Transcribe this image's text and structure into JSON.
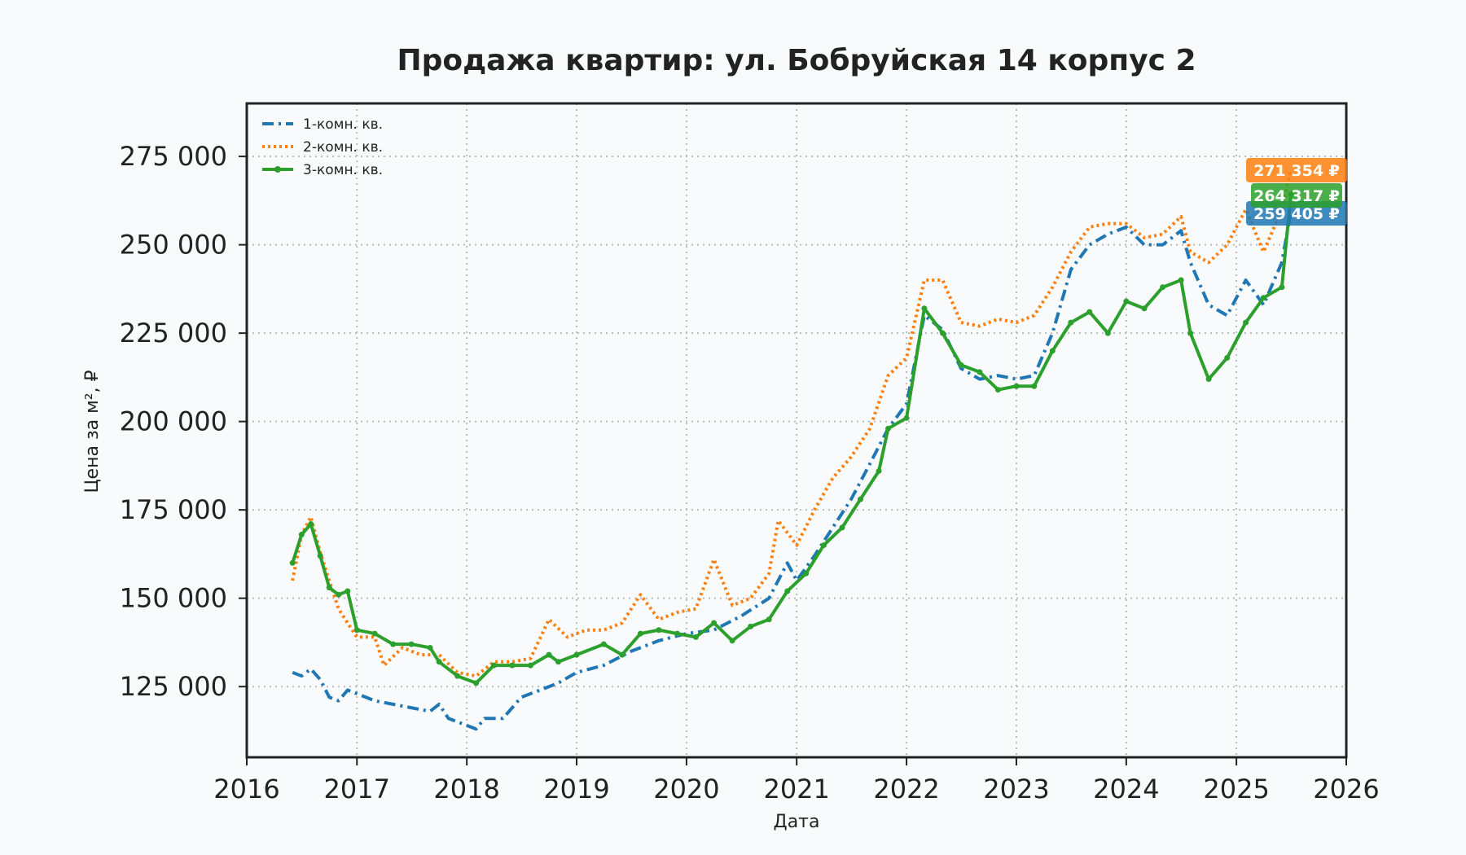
{
  "chart_data": {
    "type": "line",
    "title": "Продажа квартир: ул. Бобруйская 14 корпус 2",
    "xlabel": "Дата",
    "ylabel": "Цена за м², ₽",
    "xlim": [
      "2016-01-01",
      "2026-01-01"
    ],
    "ylim": [
      105000,
      290000
    ],
    "x_ticks": [
      "2016",
      "2017",
      "2018",
      "2019",
      "2020",
      "2021",
      "2022",
      "2023",
      "2024",
      "2025",
      "2026"
    ],
    "y_ticks": [
      {
        "value": 125000,
        "label": "125 000"
      },
      {
        "value": 150000,
        "label": "150 000"
      },
      {
        "value": 175000,
        "label": "175 000"
      },
      {
        "value": 200000,
        "label": "200 000"
      },
      {
        "value": 225000,
        "label": "225 000"
      },
      {
        "value": 250000,
        "label": "250 000"
      },
      {
        "value": 275000,
        "label": "275 000"
      }
    ],
    "grid": true,
    "legend_position": "top-left",
    "series": [
      {
        "name": "1-комн. кв.",
        "color": "#1f77b4",
        "style": "dashdot",
        "end_label": "259 405 ₽",
        "end_value": 259405,
        "points": [
          [
            "2016-06-01",
            129000
          ],
          [
            "2016-07-01",
            128000
          ],
          [
            "2016-08-01",
            130000
          ],
          [
            "2016-09-01",
            127000
          ],
          [
            "2016-10-01",
            122000
          ],
          [
            "2016-11-01",
            121000
          ],
          [
            "2016-12-01",
            124000
          ],
          [
            "2017-01-01",
            123000
          ],
          [
            "2017-03-01",
            121000
          ],
          [
            "2017-05-01",
            120000
          ],
          [
            "2017-07-01",
            119000
          ],
          [
            "2017-09-01",
            118000
          ],
          [
            "2017-10-01",
            120000
          ],
          [
            "2017-11-01",
            116000
          ],
          [
            "2018-01-01",
            114000
          ],
          [
            "2018-02-01",
            113000
          ],
          [
            "2018-03-01",
            116000
          ],
          [
            "2018-05-01",
            116000
          ],
          [
            "2018-07-01",
            122000
          ],
          [
            "2018-09-01",
            124000
          ],
          [
            "2018-11-01",
            126000
          ],
          [
            "2019-01-01",
            129000
          ],
          [
            "2019-04-01",
            131000
          ],
          [
            "2019-07-01",
            135000
          ],
          [
            "2019-10-01",
            138000
          ],
          [
            "2020-01-01",
            140000
          ],
          [
            "2020-04-01",
            141000
          ],
          [
            "2020-07-01",
            145000
          ],
          [
            "2020-10-01",
            150000
          ],
          [
            "2020-12-01",
            160000
          ],
          [
            "2021-01-01",
            155000
          ],
          [
            "2021-03-01",
            162000
          ],
          [
            "2021-05-01",
            170000
          ],
          [
            "2021-07-01",
            178000
          ],
          [
            "2021-09-01",
            188000
          ],
          [
            "2021-11-01",
            198000
          ],
          [
            "2022-01-01",
            205000
          ],
          [
            "2022-03-01",
            230000
          ],
          [
            "2022-05-01",
            226000
          ],
          [
            "2022-07-01",
            215000
          ],
          [
            "2022-09-01",
            212000
          ],
          [
            "2022-11-01",
            213000
          ],
          [
            "2023-01-01",
            212000
          ],
          [
            "2023-03-01",
            213000
          ],
          [
            "2023-05-01",
            225000
          ],
          [
            "2023-07-01",
            243000
          ],
          [
            "2023-09-01",
            250000
          ],
          [
            "2023-11-01",
            253000
          ],
          [
            "2024-01-01",
            255000
          ],
          [
            "2024-03-01",
            250000
          ],
          [
            "2024-05-01",
            250000
          ],
          [
            "2024-07-01",
            254000
          ],
          [
            "2024-08-01",
            245000
          ],
          [
            "2024-10-01",
            233000
          ],
          [
            "2024-12-01",
            230000
          ],
          [
            "2025-02-01",
            240000
          ],
          [
            "2025-04-01",
            233000
          ],
          [
            "2025-06-01",
            245000
          ],
          [
            "2025-07-01",
            259405
          ]
        ]
      },
      {
        "name": "2-комн. кв.",
        "color": "#ff7f0e",
        "style": "dotted",
        "end_label": "271 354 ₽",
        "end_value": 271354,
        "points": [
          [
            "2016-06-01",
            155000
          ],
          [
            "2016-07-01",
            168000
          ],
          [
            "2016-08-01",
            173000
          ],
          [
            "2016-09-01",
            163000
          ],
          [
            "2016-10-01",
            155000
          ],
          [
            "2016-11-01",
            147000
          ],
          [
            "2016-12-01",
            143000
          ],
          [
            "2017-01-01",
            139000
          ],
          [
            "2017-03-01",
            139000
          ],
          [
            "2017-04-01",
            131000
          ],
          [
            "2017-06-01",
            136000
          ],
          [
            "2017-08-01",
            134000
          ],
          [
            "2017-10-01",
            134000
          ],
          [
            "2017-12-01",
            129000
          ],
          [
            "2018-02-01",
            128000
          ],
          [
            "2018-04-01",
            132000
          ],
          [
            "2018-06-01",
            132000
          ],
          [
            "2018-08-01",
            133000
          ],
          [
            "2018-10-01",
            144000
          ],
          [
            "2018-12-01",
            139000
          ],
          [
            "2019-02-01",
            141000
          ],
          [
            "2019-04-01",
            141000
          ],
          [
            "2019-06-01",
            143000
          ],
          [
            "2019-08-01",
            151000
          ],
          [
            "2019-10-01",
            144000
          ],
          [
            "2019-12-01",
            146000
          ],
          [
            "2020-02-01",
            147000
          ],
          [
            "2020-04-01",
            161000
          ],
          [
            "2020-06-01",
            148000
          ],
          [
            "2020-08-01",
            150000
          ],
          [
            "2020-10-01",
            157000
          ],
          [
            "2020-11-01",
            172000
          ],
          [
            "2021-01-01",
            165000
          ],
          [
            "2021-03-01",
            175000
          ],
          [
            "2021-05-01",
            184000
          ],
          [
            "2021-07-01",
            190000
          ],
          [
            "2021-09-01",
            198000
          ],
          [
            "2021-11-01",
            213000
          ],
          [
            "2022-01-01",
            218000
          ],
          [
            "2022-03-01",
            240000
          ],
          [
            "2022-05-01",
            240000
          ],
          [
            "2022-07-01",
            228000
          ],
          [
            "2022-09-01",
            227000
          ],
          [
            "2022-11-01",
            229000
          ],
          [
            "2023-01-01",
            228000
          ],
          [
            "2023-03-01",
            230000
          ],
          [
            "2023-05-01",
            238000
          ],
          [
            "2023-07-01",
            248000
          ],
          [
            "2023-09-01",
            255000
          ],
          [
            "2023-11-01",
            256000
          ],
          [
            "2024-01-01",
            256000
          ],
          [
            "2024-03-01",
            252000
          ],
          [
            "2024-05-01",
            253000
          ],
          [
            "2024-07-01",
            258000
          ],
          [
            "2024-08-01",
            248000
          ],
          [
            "2024-10-01",
            245000
          ],
          [
            "2024-12-01",
            250000
          ],
          [
            "2025-02-01",
            260000
          ],
          [
            "2025-04-01",
            248000
          ],
          [
            "2025-06-01",
            260000
          ],
          [
            "2025-07-01",
            271354
          ]
        ]
      },
      {
        "name": "3-комн. кв.",
        "color": "#2ca02c",
        "style": "solid",
        "end_label": "264 317 ₽",
        "end_value": 264317,
        "points": [
          [
            "2016-06-01",
            160000
          ],
          [
            "2016-07-01",
            168000
          ],
          [
            "2016-08-01",
            171000
          ],
          [
            "2016-09-01",
            162000
          ],
          [
            "2016-10-01",
            153000
          ],
          [
            "2016-11-01",
            151000
          ],
          [
            "2016-12-01",
            152000
          ],
          [
            "2017-01-01",
            141000
          ],
          [
            "2017-03-01",
            140000
          ],
          [
            "2017-05-01",
            137000
          ],
          [
            "2017-07-01",
            137000
          ],
          [
            "2017-09-01",
            136000
          ],
          [
            "2017-10-01",
            132000
          ],
          [
            "2017-12-01",
            128000
          ],
          [
            "2018-02-01",
            126000
          ],
          [
            "2018-04-01",
            131000
          ],
          [
            "2018-06-01",
            131000
          ],
          [
            "2018-08-01",
            131000
          ],
          [
            "2018-10-01",
            134000
          ],
          [
            "2018-11-01",
            132000
          ],
          [
            "2019-01-01",
            134000
          ],
          [
            "2019-04-01",
            137000
          ],
          [
            "2019-06-01",
            134000
          ],
          [
            "2019-08-01",
            140000
          ],
          [
            "2019-10-01",
            141000
          ],
          [
            "2019-12-01",
            140000
          ],
          [
            "2020-02-01",
            139000
          ],
          [
            "2020-04-01",
            143000
          ],
          [
            "2020-06-01",
            138000
          ],
          [
            "2020-08-01",
            142000
          ],
          [
            "2020-10-01",
            144000
          ],
          [
            "2020-12-01",
            152000
          ],
          [
            "2021-02-01",
            157000
          ],
          [
            "2021-04-01",
            165000
          ],
          [
            "2021-06-01",
            170000
          ],
          [
            "2021-08-01",
            178000
          ],
          [
            "2021-10-01",
            186000
          ],
          [
            "2021-11-01",
            198000
          ],
          [
            "2022-01-01",
            201000
          ],
          [
            "2022-03-01",
            232000
          ],
          [
            "2022-05-01",
            225000
          ],
          [
            "2022-07-01",
            216000
          ],
          [
            "2022-09-01",
            214000
          ],
          [
            "2022-11-01",
            209000
          ],
          [
            "2023-01-01",
            210000
          ],
          [
            "2023-03-01",
            210000
          ],
          [
            "2023-05-01",
            220000
          ],
          [
            "2023-07-01",
            228000
          ],
          [
            "2023-09-01",
            231000
          ],
          [
            "2023-11-01",
            225000
          ],
          [
            "2024-01-01",
            234000
          ],
          [
            "2024-03-01",
            232000
          ],
          [
            "2024-05-01",
            238000
          ],
          [
            "2024-07-01",
            240000
          ],
          [
            "2024-08-01",
            225000
          ],
          [
            "2024-10-01",
            212000
          ],
          [
            "2024-12-01",
            218000
          ],
          [
            "2025-02-01",
            228000
          ],
          [
            "2025-04-01",
            235000
          ],
          [
            "2025-06-01",
            238000
          ],
          [
            "2025-07-01",
            264317
          ]
        ]
      }
    ]
  }
}
